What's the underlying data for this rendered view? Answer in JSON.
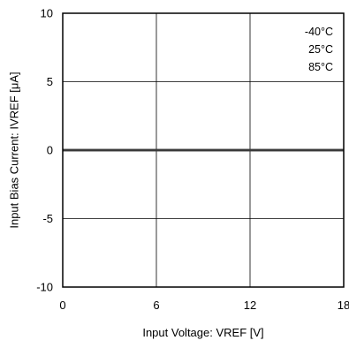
{
  "chart_data": {
    "type": "line",
    "xlabel": "Input Voltage: VREF [V]",
    "ylabel": "Input Bias Current: IVREF [μA]",
    "xlim": [
      0,
      18
    ],
    "ylim": [
      -10,
      10
    ],
    "xticks": [
      0,
      6,
      12,
      18
    ],
    "yticks": [
      -10,
      -5,
      0,
      5,
      10
    ],
    "xtick_labels": [
      "0",
      "6",
      "12",
      "18"
    ],
    "ytick_labels": [
      "-10",
      "-5",
      "0",
      "5",
      "10"
    ],
    "grid": true,
    "legend_position": "top-right",
    "series": [
      {
        "name": "-40°C",
        "color": "#3a3a3a",
        "x": [
          0,
          18
        ],
        "y": [
          0,
          0
        ]
      },
      {
        "name": "25°C",
        "color": "#3a3a3a",
        "x": [
          0,
          18
        ],
        "y": [
          0,
          0
        ]
      },
      {
        "name": "85°C",
        "color": "#3a3a3a",
        "x": [
          0,
          18
        ],
        "y": [
          0,
          0
        ]
      }
    ]
  }
}
